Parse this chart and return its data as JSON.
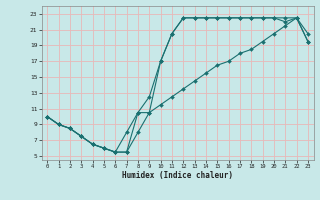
{
  "xlabel": "Humidex (Indice chaleur)",
  "bg_color": "#c8e8e8",
  "line_color": "#1a7070",
  "grid_color": "#e8b8b8",
  "xlim": [
    -0.5,
    23.5
  ],
  "ylim": [
    4.5,
    24.0
  ],
  "xticks": [
    0,
    1,
    2,
    3,
    4,
    5,
    6,
    7,
    8,
    9,
    10,
    11,
    12,
    13,
    14,
    15,
    16,
    17,
    18,
    19,
    20,
    21,
    22,
    23
  ],
  "yticks": [
    5,
    7,
    9,
    11,
    13,
    15,
    17,
    19,
    21,
    23
  ],
  "line1_x": [
    0,
    1,
    2,
    3,
    4,
    5,
    6,
    7,
    8,
    9,
    10,
    11,
    12,
    13,
    14,
    15,
    16,
    17,
    18,
    19,
    20,
    21,
    22,
    23
  ],
  "line1_y": [
    10,
    9,
    8.5,
    7.5,
    6.5,
    6,
    5.5,
    5.5,
    8,
    10.5,
    17,
    20.5,
    22.5,
    22.5,
    22.5,
    22.5,
    22.5,
    22.5,
    22.5,
    22.5,
    22.5,
    22.5,
    22.5,
    20.5
  ],
  "line2_x": [
    0,
    1,
    2,
    3,
    4,
    5,
    6,
    7,
    8,
    9,
    10,
    11,
    12,
    13,
    14,
    15,
    16,
    17,
    18,
    19,
    20,
    21,
    22,
    23
  ],
  "line2_y": [
    10,
    9,
    8.5,
    7.5,
    6.5,
    6,
    5.5,
    5.5,
    10.5,
    10.5,
    11.5,
    12.5,
    13.5,
    14.5,
    15.5,
    16.5,
    17,
    18,
    18.5,
    19.5,
    20.5,
    21.5,
    22.5,
    19.5
  ],
  "line3_x": [
    0,
    1,
    2,
    3,
    4,
    5,
    6,
    7,
    8,
    9,
    10,
    11,
    12,
    13,
    14,
    15,
    16,
    17,
    18,
    19,
    20,
    21,
    22,
    23
  ],
  "line3_y": [
    10,
    9,
    8.5,
    7.5,
    6.5,
    6,
    5.5,
    8,
    10.5,
    12.5,
    17,
    20.5,
    22.5,
    22.5,
    22.5,
    22.5,
    22.5,
    22.5,
    22.5,
    22.5,
    22.5,
    22,
    22.5,
    19.5
  ]
}
